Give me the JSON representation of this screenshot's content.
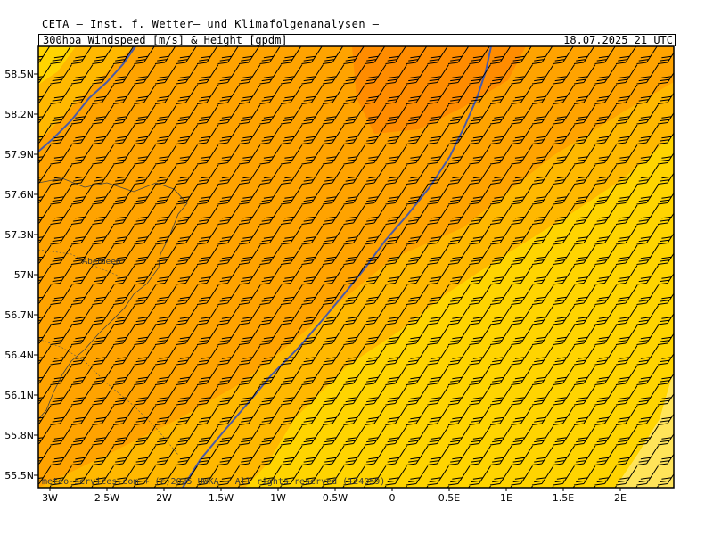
{
  "header": {
    "title": "CETA — Inst. f. Wetter— und Klimafolgenanalysen —",
    "subtitle": "300hpa Windspeed [m/s] & Height [gpdm]",
    "datetime": "18.07.2025 21 UTC"
  },
  "map": {
    "lat_labels": [
      "58.5N",
      "58.2N",
      "57.9N",
      "57.6N",
      "57.3N",
      "57N",
      "56.7N",
      "56.4N",
      "56.1N",
      "55.8N",
      "55.5N"
    ],
    "lon_labels": [
      "3W",
      "2.5W",
      "2W",
      "1.5W",
      "1W",
      "0.5W",
      "0",
      "0.5E",
      "1E",
      "1.5E",
      "2E"
    ],
    "city_label": "Aberdeen",
    "credit": "meteo-services.com + (c)2025 UWKA – All rights reserved (124059)",
    "colors": {
      "wind_light": "#ffe45a",
      "wind_yellow": "#ffd400",
      "wind_amber": "#ffb800",
      "wind_orange": "#ffa300",
      "wind_darkorange": "#ff8c00",
      "height_contour": "#4a5aa8",
      "barb": "#000000"
    },
    "wind_barb_direction": "west-southwest (flow towards north-east)",
    "height_contours": 2
  }
}
